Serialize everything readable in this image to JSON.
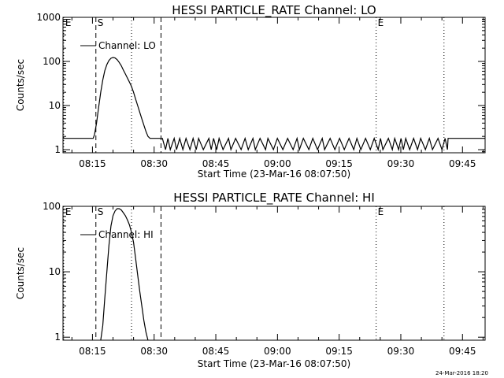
{
  "chart_data": [
    {
      "type": "line",
      "title": "HESSI PARTICLE_RATE Channel: LO",
      "xlabel": "Start Time (23-Mar-16 08:07:50)",
      "ylabel": "Counts/sec",
      "yscale": "log",
      "xlim": [
        "08:07:50",
        "09:50:30"
      ],
      "ylim": [
        0.85,
        1000
      ],
      "xticks": [
        "08:15",
        "08:30",
        "08:45",
        "09:00",
        "09:15",
        "09:30",
        "09:45"
      ],
      "yticks": [
        "1",
        "10",
        "100",
        "1000"
      ],
      "legend": {
        "label": "Channel: LO",
        "placement": "top-left"
      },
      "markers": [
        {
          "label": "E",
          "time": "08:08:00",
          "style": "dotted"
        },
        {
          "label": "S",
          "time": "08:15:50",
          "style": "dashed"
        },
        {
          "time": "08:24:30",
          "style": "dotted"
        },
        {
          "time": "08:31:40",
          "style": "dashed"
        },
        {
          "label": "E",
          "time": "09:24:00",
          "style": "dotted"
        },
        {
          "time": "09:40:30",
          "style": "dotted"
        }
      ],
      "series": [
        {
          "name": "Channel: LO",
          "x": [
            "08:07:50",
            "08:15:10",
            "08:15:30",
            "08:16:00",
            "08:16:30",
            "08:17:00",
            "08:17:30",
            "08:18:00",
            "08:18:30",
            "08:19:00",
            "08:19:30",
            "08:20:00",
            "08:20:30",
            "08:21:00",
            "08:21:30",
            "08:22:00",
            "08:22:30",
            "08:23:00",
            "08:23:30",
            "08:24:00",
            "08:24:30",
            "08:25:00",
            "08:25:30",
            "08:26:00",
            "08:26:30",
            "08:27:00",
            "08:27:30",
            "08:28:00",
            "08:28:30",
            "08:29:00",
            "08:29:30",
            "08:30:00",
            "08:30:30",
            "08:31:00",
            "08:31:20"
          ],
          "y": [
            1.8,
            1.8,
            2.2,
            4,
            9,
            20,
            38,
            62,
            85,
            105,
            118,
            123,
            120,
            110,
            95,
            80,
            64,
            52,
            42,
            34,
            27,
            20,
            14,
            10,
            7,
            5,
            3.6,
            2.6,
            2,
            1.8,
            1.8,
            1.8,
            1.8,
            1.8,
            1.8
          ],
          "note_bursty": {
            "x_range": [
              "08:32:00",
              "09:41:30"
            ],
            "values": [
              1,
              1.8
            ]
          }
        }
      ]
    },
    {
      "type": "line",
      "title": "HESSI PARTICLE_RATE Channel: HI",
      "xlabel": "Start Time (23-Mar-16 08:07:50)",
      "ylabel": "Counts/sec",
      "yscale": "log",
      "xlim": [
        "08:07:50",
        "09:50:30"
      ],
      "ylim": [
        0.9,
        100
      ],
      "xticks": [
        "08:15",
        "08:30",
        "08:45",
        "09:00",
        "09:15",
        "09:30",
        "09:45"
      ],
      "yticks": [
        "1",
        "10",
        "100"
      ],
      "legend": {
        "label": "Channel: HI",
        "placement": "top-left"
      },
      "markers": [
        {
          "label": "E",
          "time": "08:08:00",
          "style": "dotted"
        },
        {
          "label": "S",
          "time": "08:15:50",
          "style": "dashed"
        },
        {
          "time": "08:24:30",
          "style": "dotted"
        },
        {
          "time": "08:31:40",
          "style": "dashed"
        },
        {
          "label": "E",
          "time": "09:24:00",
          "style": "dotted"
        },
        {
          "time": "09:40:30",
          "style": "dotted"
        }
      ],
      "series": [
        {
          "name": "Channel: HI",
          "x": [
            "08:17:00",
            "08:17:30",
            "08:18:00",
            "08:18:30",
            "08:19:00",
            "08:19:30",
            "08:20:00",
            "08:20:30",
            "08:21:00",
            "08:21:30",
            "08:22:00",
            "08:22:30",
            "08:23:00",
            "08:23:30",
            "08:24:00",
            "08:24:30",
            "08:25:00",
            "08:25:30",
            "08:26:00",
            "08:26:30",
            "08:27:00",
            "08:27:30",
            "08:28:00",
            "08:28:30"
          ],
          "y": [
            0.9,
            1.5,
            4,
            10,
            25,
            50,
            72,
            85,
            92,
            92,
            88,
            80,
            72,
            62,
            52,
            40,
            28,
            16,
            9,
            5,
            3,
            1.8,
            1.2,
            0.9
          ]
        }
      ]
    }
  ],
  "footer": {
    "timestamp": "24-Mar-2016 18:20"
  }
}
